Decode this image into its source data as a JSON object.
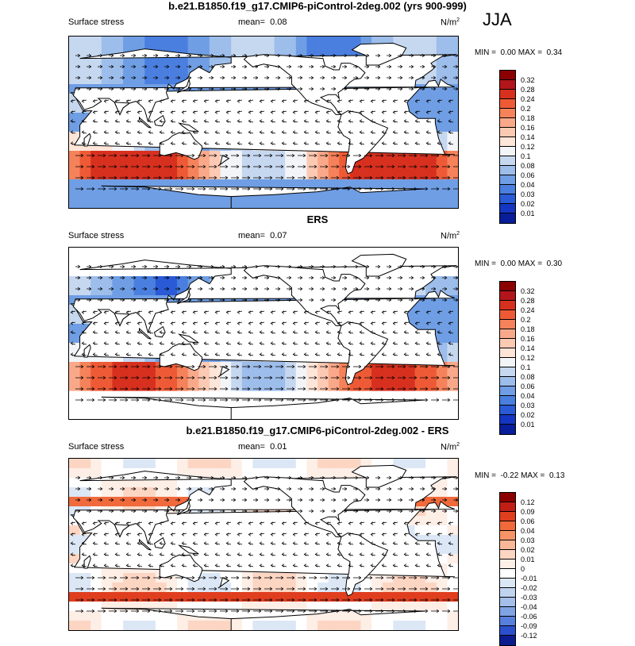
{
  "season": "JJA",
  "panels": [
    {
      "title": "b.e21.B1850.f19_g17.CMIP6-piControl-2deg.002 (yrs 900-999)",
      "variable": "Surface stress",
      "mean_label": "mean=",
      "mean_value": "0.08",
      "units": "N/m",
      "units_exp": "2",
      "min_label": "MIN =",
      "min_value": "0.00",
      "max_label": "MAX =",
      "max_value": "0.34",
      "colorbar_ticks": [
        "0.32",
        "0.28",
        "0.24",
        "0.2",
        "0.18",
        "0.16",
        "0.14",
        "0.12",
        "0.1",
        "0.08",
        "0.06",
        "0.04",
        "0.03",
        "0.02",
        "0.01"
      ]
    },
    {
      "title": "ERS",
      "variable": "Surface stress",
      "mean_label": "mean=",
      "mean_value": "0.07",
      "units": "N/m",
      "units_exp": "2",
      "min_label": "MIN =",
      "min_value": "0.00",
      "max_label": "MAX =",
      "max_value": "0.30",
      "colorbar_ticks": [
        "0.32",
        "0.28",
        "0.24",
        "0.2",
        "0.18",
        "0.16",
        "0.14",
        "0.12",
        "0.1",
        "0.08",
        "0.06",
        "0.04",
        "0.03",
        "0.02",
        "0.01"
      ]
    },
    {
      "title": "b.e21.B1850.f19_g17.CMIP6-piControl-2deg.002 - ERS",
      "variable": "Surface stress",
      "mean_label": "mean=",
      "mean_value": "0.01",
      "units": "N/m",
      "units_exp": "2",
      "min_label": "MIN =",
      "min_value": "-0.22",
      "max_label": "MAX =",
      "max_value": "0.13",
      "colorbar_ticks": [
        "0.12",
        "0.09",
        "0.06",
        "0.04",
        "0.03",
        "0.02",
        "0.01",
        "0",
        "-0.01",
        "-0.02",
        "-0.03",
        "-0.04",
        "-0.06",
        "-0.09",
        "-0.12"
      ]
    }
  ],
  "colors": {
    "abs_scale": [
      "#8b0000",
      "#b2161a",
      "#d7301f",
      "#ee5a36",
      "#f5825a",
      "#f9a98a",
      "#fcc9b3",
      "#fde5d8",
      "#f2f4f8",
      "#c6d8f0",
      "#9dbdeb",
      "#6f9ee4",
      "#4a7fe0",
      "#2a5ad6",
      "#1536c2",
      "#071d99"
    ],
    "diff_scale": [
      "#8b0000",
      "#c11e16",
      "#df3e1f",
      "#f06a3c",
      "#f69468",
      "#fab797",
      "#fcd5c3",
      "#fdeee6",
      "#ffffff",
      "#dce7f6",
      "#c0d3f0",
      "#a3bfea",
      "#7fa3e3",
      "#577fdb",
      "#2c4fcc",
      "#0b1c8f"
    ],
    "land": "#ffffff"
  }
}
